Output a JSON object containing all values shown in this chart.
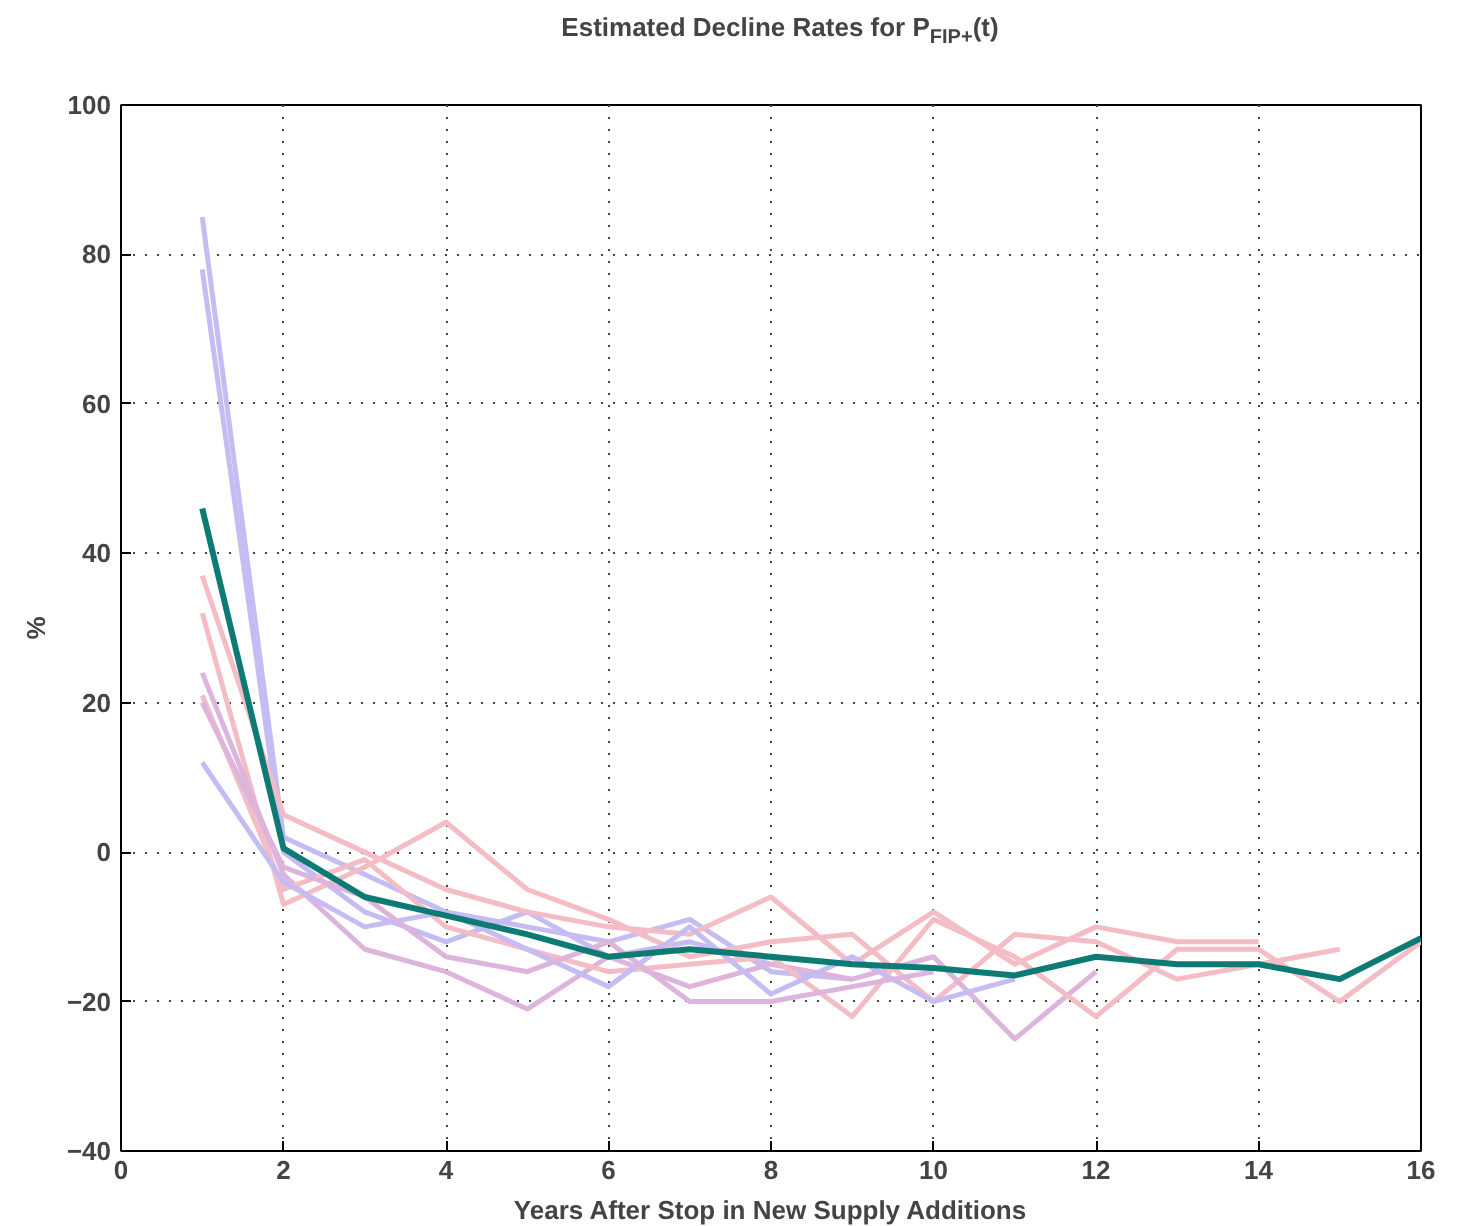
{
  "chart_data": {
    "type": "line",
    "title": "Estimated Decline Rates for P$_{FIP+}$(t)",
    "xlabel": "Years After Stop in New Supply Additions",
    "ylabel": "%",
    "x": [
      1,
      2,
      3,
      4,
      5,
      6,
      7,
      8,
      9,
      10,
      11,
      12,
      13,
      14,
      15,
      16
    ],
    "xlim": [
      0,
      16
    ],
    "xticks": [
      0,
      2,
      4,
      6,
      8,
      10,
      12,
      14,
      16
    ],
    "ylim": [
      -40,
      100
    ],
    "yticks": [
      -40,
      -20,
      0,
      20,
      40,
      60,
      80,
      100
    ],
    "grid": true,
    "line_style": "solid",
    "series": [
      {
        "color": "#c4bcf2",
        "values": [
          85,
          2,
          -3,
          -8,
          -10,
          -12,
          -9,
          -16,
          -17,
          null,
          null,
          null,
          null,
          null,
          null,
          null
        ]
      },
      {
        "color": "#c4bcf2",
        "values": [
          78,
          0,
          -8,
          -12,
          -8,
          -14,
          -12,
          -15,
          null,
          null,
          null,
          null,
          null,
          null,
          null,
          null
        ]
      },
      {
        "color": "#f4bcc4",
        "values": [
          37,
          5,
          0,
          -5,
          -8,
          -10,
          -11,
          -6,
          -15,
          -8,
          -15,
          -10,
          -12,
          -12,
          null,
          null
        ]
      },
      {
        "color": "#f4bcc4",
        "values": [
          32,
          -7,
          -2,
          4,
          -5,
          -9,
          -14,
          -12,
          -11,
          -20,
          -11,
          -12,
          -17,
          -15,
          -13,
          null
        ]
      },
      {
        "color": "#dcb4dc",
        "values": [
          24,
          -3,
          -13,
          -16,
          -21,
          -14,
          -18,
          -15,
          -17,
          -14,
          -25,
          -16,
          null,
          null,
          null,
          null
        ]
      },
      {
        "color": "#f4bcc4",
        "values": [
          21,
          -5,
          -1,
          -10,
          -13,
          -16,
          -15,
          -14,
          -22,
          -9,
          -14,
          -22,
          -13,
          -13,
          -20,
          -12
        ]
      },
      {
        "color": "#c4bcf2",
        "values": [
          12,
          -4,
          -10,
          -8,
          -13,
          -18,
          -10,
          -19,
          -14,
          -20,
          -17,
          null,
          null,
          null,
          null,
          null
        ]
      },
      {
        "color": "#dcb4dc",
        "values": [
          20,
          -2,
          -6,
          -14,
          -16,
          -12,
          -20,
          -20,
          -18,
          -16,
          null,
          null,
          null,
          null,
          null,
          null
        ]
      },
      {
        "color": "#0e7a74",
        "values": [
          46,
          0.5,
          -6,
          -8.5,
          -11,
          -14,
          -13,
          -14,
          -15,
          -15.5,
          -16.5,
          -14,
          -15,
          -15,
          -17,
          -11.5
        ]
      }
    ]
  }
}
